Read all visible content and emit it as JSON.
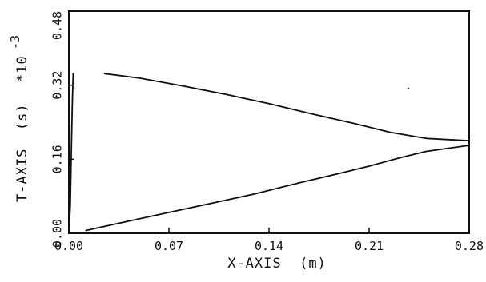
{
  "chart_data": {
    "type": "line",
    "title": "",
    "xlabel": "X-AXIS  (m)",
    "ylabel": "T-AXIS  (s)",
    "ylabel_multiplier": "*10",
    "ylabel_exponent": "-3",
    "xlim": [
      0.0,
      0.28
    ],
    "ylim": [
      0.0,
      0.48
    ],
    "x_ticks": [
      0.0,
      0.07,
      0.14,
      0.21,
      0.28
    ],
    "x_tick_labels": [
      "0.00",
      "0.07",
      "0.14",
      "0.21",
      "0.28"
    ],
    "y_ticks": [
      0.0,
      0.16,
      0.32,
      0.48
    ],
    "y_tick_labels": [
      "0.00",
      "0.16",
      "0.32",
      "0.48"
    ],
    "grid": false,
    "legend": "none",
    "series": [
      {
        "x": [
          0.0,
          0.001,
          0.0015,
          0.002,
          0.0025,
          0.003
        ],
        "y": [
          0.0,
          0.06,
          0.14,
          0.22,
          0.29,
          0.345
        ]
      },
      {
        "x": [
          0.025,
          0.05,
          0.08,
          0.11,
          0.14,
          0.17,
          0.2,
          0.225,
          0.25,
          0.28
        ],
        "y": [
          0.345,
          0.335,
          0.318,
          0.3,
          0.28,
          0.258,
          0.237,
          0.218,
          0.205,
          0.2
        ]
      },
      {
        "x": [
          0.012,
          0.04,
          0.07,
          0.1,
          0.13,
          0.16,
          0.19,
          0.21,
          0.23,
          0.25,
          0.28
        ],
        "y": [
          0.006,
          0.025,
          0.045,
          0.065,
          0.085,
          0.108,
          0.13,
          0.145,
          0.162,
          0.177,
          0.19
        ]
      }
    ]
  }
}
